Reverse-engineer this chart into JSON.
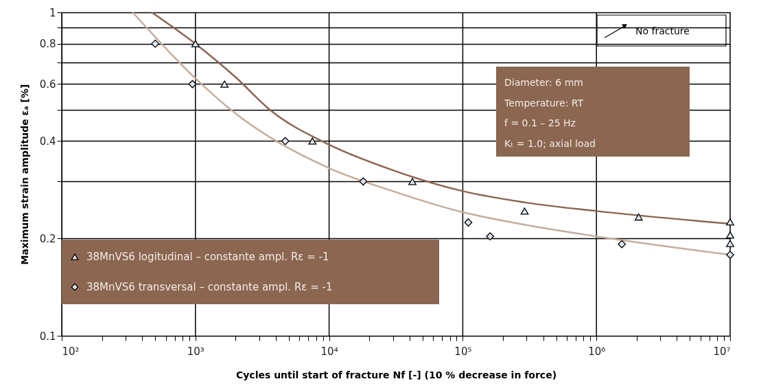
{
  "chart_data": {
    "type": "scatter",
    "xlabel": "Cycles until start of fracture Nf [-] (10 % decrease in force)",
    "ylabel": "Maximum strain amplitude εₐ [%]",
    "log": "xy",
    "grid": true,
    "legend": "bottom left",
    "xlim": [
      100,
      10000000
    ],
    "ylim": [
      0.1,
      1
    ],
    "xticks": [
      {
        "value": 100,
        "label": "10²"
      },
      {
        "value": 200,
        "label": null
      },
      {
        "value": 300,
        "label": null
      },
      {
        "value": 400,
        "label": null
      },
      {
        "value": 500,
        "label": null
      },
      {
        "value": 600,
        "label": null
      },
      {
        "value": 700,
        "label": null
      },
      {
        "value": 800,
        "label": null
      },
      {
        "value": 900,
        "label": null
      },
      {
        "value": 1000,
        "label": "10³"
      },
      {
        "value": 2000,
        "label": null
      },
      {
        "value": 3000,
        "label": null
      },
      {
        "value": 4000,
        "label": null
      },
      {
        "value": 5000,
        "label": null
      },
      {
        "value": 6000,
        "label": null
      },
      {
        "value": 7000,
        "label": null
      },
      {
        "value": 8000,
        "label": null
      },
      {
        "value": 9000,
        "label": null
      },
      {
        "value": 10000,
        "label": "10⁴"
      },
      {
        "value": 20000,
        "label": null
      },
      {
        "value": 30000,
        "label": null
      },
      {
        "value": 40000,
        "label": null
      },
      {
        "value": 50000,
        "label": null
      },
      {
        "value": 60000,
        "label": null
      },
      {
        "value": 70000,
        "label": null
      },
      {
        "value": 80000,
        "label": null
      },
      {
        "value": 90000,
        "label": null
      },
      {
        "value": 100000,
        "label": "10⁵"
      },
      {
        "value": 200000,
        "label": null
      },
      {
        "value": 300000,
        "label": null
      },
      {
        "value": 400000,
        "label": null
      },
      {
        "value": 500000,
        "label": null
      },
      {
        "value": 600000,
        "label": null
      },
      {
        "value": 700000,
        "label": null
      },
      {
        "value": 800000,
        "label": null
      },
      {
        "value": 900000,
        "label": null
      },
      {
        "value": 1000000,
        "label": "10⁶"
      },
      {
        "value": 2000000,
        "label": null
      },
      {
        "value": 3000000,
        "label": null
      },
      {
        "value": 4000000,
        "label": null
      },
      {
        "value": 5000000,
        "label": null
      },
      {
        "value": 6000000,
        "label": null
      },
      {
        "value": 7000000,
        "label": null
      },
      {
        "value": 8000000,
        "label": null
      },
      {
        "value": 9000000,
        "label": null
      },
      {
        "value": 10000000,
        "label": "10⁷"
      }
    ],
    "yticks": [
      0.1,
      0.2,
      {
        "value": 0.3,
        "label": null
      },
      0.4,
      {
        "value": 0.5,
        "label": null
      },
      0.6,
      {
        "value": 0.7,
        "label": null
      },
      0.8,
      {
        "value": 0.9,
        "label": null
      },
      1
    ],
    "annotations": [
      "Diameter: 6 mm",
      "Temperature: RT",
      "f = 0.1 – 25 Hz",
      "Kₜ = 1.0; axial load",
      "No fracture"
    ],
    "series": [
      {
        "name": "38MnVS6 logitudinal – constante ampl. Rε = -1",
        "marker": "triangle",
        "color": "#dde6f0",
        "x": [
          1000,
          1650,
          7500,
          42000,
          290000,
          2070000,
          10000000,
          10000000,
          10000000
        ],
        "values": [
          0.8,
          0.6,
          0.4,
          0.3,
          0.243,
          0.233,
          0.225,
          0.205,
          0.193
        ]
      },
      {
        "name": "38MnVS6 transversal – constante ampl. Rε = -1",
        "marker": "diamond",
        "color": "#dde6f0",
        "x": [
          500,
          950,
          4700,
          18000,
          110000,
          160000,
          1550000,
          10000000
        ],
        "values": [
          0.8,
          0.6,
          0.4,
          0.3,
          0.224,
          0.203,
          0.192,
          0.178
        ]
      },
      {
        "type": "line",
        "color": "#8b6450",
        "x": [
          471,
          1000,
          2000,
          3600,
          10000,
          30000,
          100000,
          300000,
          1000000,
          10000000
        ],
        "values": [
          1,
          0.8,
          0.63,
          0.5,
          0.39,
          0.325,
          0.28,
          0.258,
          0.243,
          0.222
        ]
      },
      {
        "type": "line",
        "color": "#c4ad9c",
        "x": [
          339,
          1000,
          1840,
          10000,
          30000,
          100000,
          300000,
          1000000,
          10000000
        ],
        "values": [
          1,
          0.625,
          0.5,
          0.33,
          0.28,
          0.241,
          0.22,
          0.203,
          0.178
        ]
      }
    ]
  }
}
